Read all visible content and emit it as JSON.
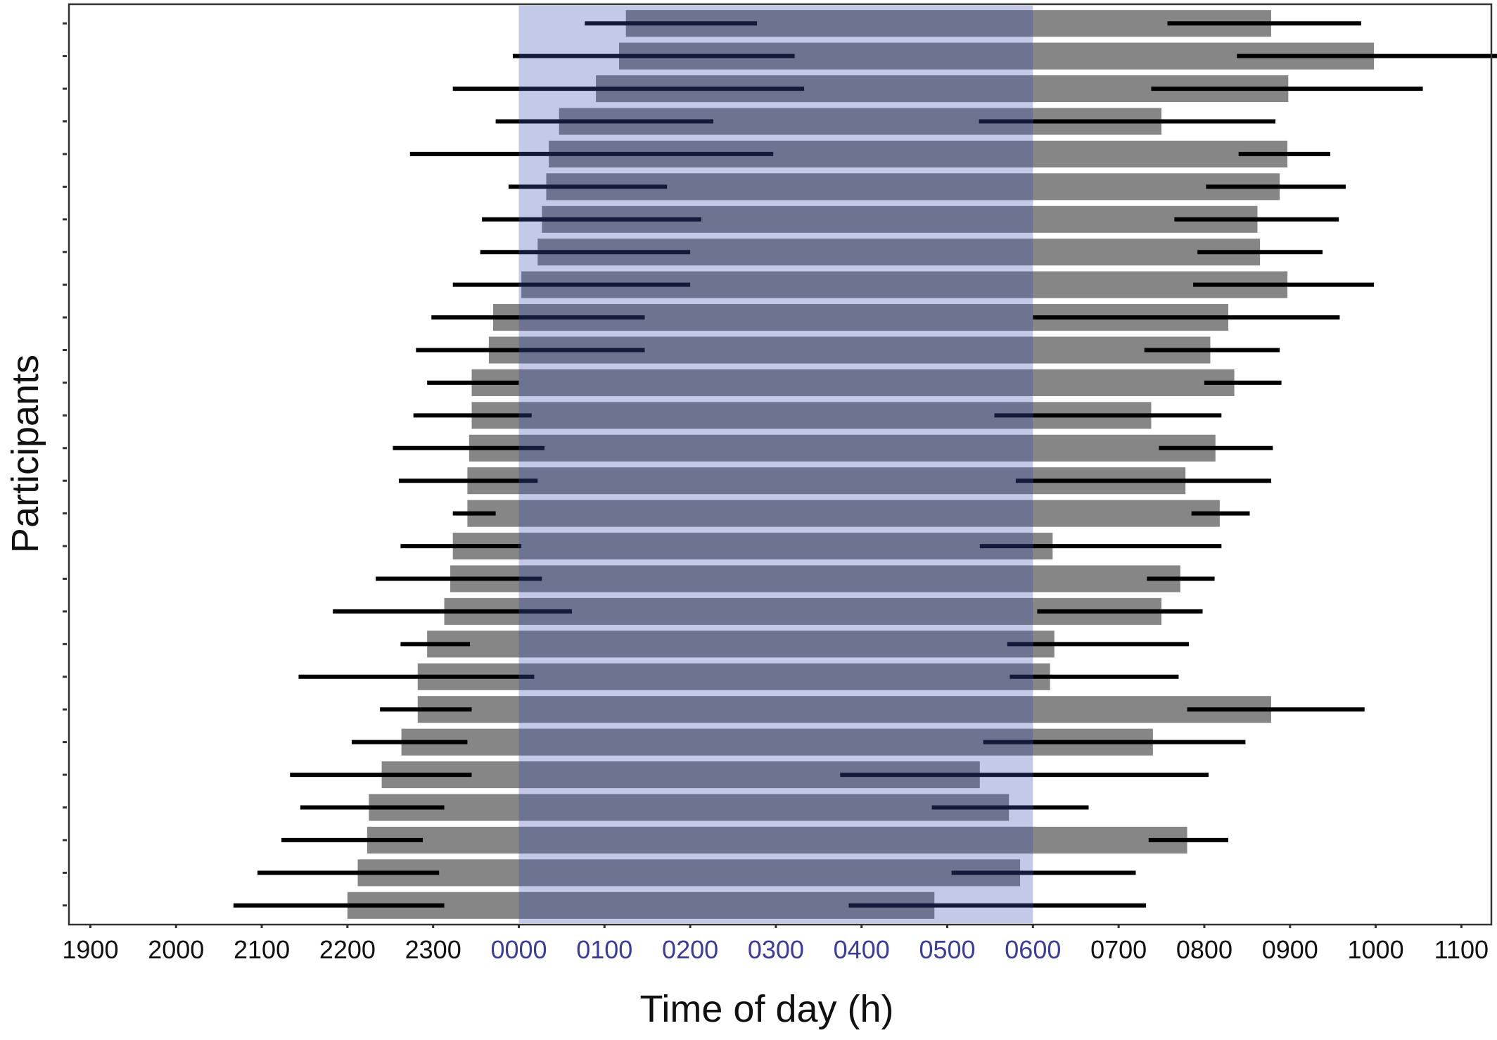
{
  "chart_data": {
    "type": "bar",
    "orientation": "horizontal",
    "xlabel": "Time of day (h)",
    "ylabel": "Participants",
    "x_ticks": [
      "1900",
      "2000",
      "2100",
      "2200",
      "2300",
      "0000",
      "0100",
      "0200",
      "0300",
      "0400",
      "0500",
      "0600",
      "0700",
      "0800",
      "0900",
      "1000",
      "1100"
    ],
    "x_tick_values": [
      19,
      20,
      21,
      22,
      23,
      24,
      25,
      26,
      27,
      28,
      29,
      30,
      31,
      32,
      33,
      34,
      35
    ],
    "xlim": [
      18.75,
      35.35
    ],
    "x_unit_note_hidden": true,
    "highlight_window": {
      "start": "0000",
      "end": "0600",
      "start_value": 24,
      "end_value": 30
    },
    "grid": false,
    "legend": "none",
    "colors": {
      "bar": "#868686",
      "bar_in_window": "#6e7490",
      "window": "#c5c9e8",
      "whisker": "#000000",
      "whisker_in_window": "#151a3a",
      "highlight_tick_text": "#3a3d9a",
      "tick_text": "#111111"
    },
    "series": [
      {
        "name": "",
        "rows": [
          {
            "bar": [
              25.25,
              32.78
            ],
            "onset": [
              24.77,
              26.78
            ],
            "offset": [
              31.57,
              33.83
            ]
          },
          {
            "bar": [
              25.17,
              33.98
            ],
            "onset": [
              23.93,
              27.22
            ],
            "offset": [
              32.38,
              35.65
            ]
          },
          {
            "bar": [
              24.9,
              32.98
            ],
            "onset": [
              23.23,
              27.33
            ],
            "offset": [
              31.38,
              34.55
            ]
          },
          {
            "bar": [
              24.47,
              31.5
            ],
            "onset": [
              23.73,
              26.27
            ],
            "offset": [
              29.37,
              32.83
            ]
          },
          {
            "bar": [
              24.35,
              32.97
            ],
            "onset": [
              22.73,
              26.97
            ],
            "offset": [
              32.4,
              33.47
            ]
          },
          {
            "bar": [
              24.32,
              32.88
            ],
            "onset": [
              23.88,
              25.73
            ],
            "offset": [
              32.02,
              33.65
            ]
          },
          {
            "bar": [
              24.27,
              32.62
            ],
            "onset": [
              23.57,
              26.13
            ],
            "offset": [
              31.65,
              33.57
            ]
          },
          {
            "bar": [
              24.22,
              32.65
            ],
            "onset": [
              23.55,
              26.0
            ],
            "offset": [
              31.92,
              33.38
            ]
          },
          {
            "bar": [
              24.03,
              32.97
            ],
            "onset": [
              23.23,
              26.0
            ],
            "offset": [
              31.87,
              33.98
            ]
          },
          {
            "bar": [
              23.7,
              32.28
            ],
            "onset": [
              22.98,
              25.47
            ],
            "offset": [
              30.0,
              33.58
            ]
          },
          {
            "bar": [
              23.65,
              32.07
            ],
            "onset": [
              22.8,
              25.47
            ],
            "offset": [
              31.3,
              32.88
            ]
          },
          {
            "bar": [
              23.45,
              32.35
            ],
            "onset": [
              22.93,
              24.0
            ],
            "offset": [
              32.0,
              32.9
            ]
          },
          {
            "bar": [
              23.45,
              31.38
            ],
            "onset": [
              22.77,
              24.15
            ],
            "offset": [
              29.55,
              32.2
            ]
          },
          {
            "bar": [
              23.42,
              32.13
            ],
            "onset": [
              22.53,
              24.3
            ],
            "offset": [
              31.47,
              32.8
            ]
          },
          {
            "bar": [
              23.4,
              31.78
            ],
            "onset": [
              22.6,
              24.22
            ],
            "offset": [
              29.8,
              32.78
            ]
          },
          {
            "bar": [
              23.4,
              32.18
            ],
            "onset": [
              23.23,
              23.73
            ],
            "offset": [
              31.85,
              32.53
            ]
          },
          {
            "bar": [
              23.23,
              30.23
            ],
            "onset": [
              22.62,
              24.03
            ],
            "offset": [
              29.38,
              32.2
            ]
          },
          {
            "bar": [
              23.2,
              31.72
            ],
            "onset": [
              22.33,
              24.27
            ],
            "offset": [
              31.33,
              32.12
            ]
          },
          {
            "bar": [
              23.13,
              31.5
            ],
            "onset": [
              21.83,
              24.62
            ],
            "offset": [
              30.05,
              31.98
            ]
          },
          {
            "bar": [
              22.93,
              30.25
            ],
            "onset": [
              22.62,
              23.43
            ],
            "offset": [
              29.7,
              31.82
            ]
          },
          {
            "bar": [
              22.82,
              30.2
            ],
            "onset": [
              21.43,
              24.18
            ],
            "offset": [
              29.73,
              31.7
            ]
          },
          {
            "bar": [
              22.82,
              32.78
            ],
            "onset": [
              22.38,
              23.45
            ],
            "offset": [
              31.8,
              33.87
            ]
          },
          {
            "bar": [
              22.63,
              31.4
            ],
            "onset": [
              22.05,
              23.4
            ],
            "offset": [
              29.42,
              32.48
            ]
          },
          {
            "bar": [
              22.4,
              29.38
            ],
            "onset": [
              21.33,
              23.45
            ],
            "offset": [
              27.75,
              32.05
            ]
          },
          {
            "bar": [
              22.25,
              29.72
            ],
            "onset": [
              21.45,
              23.13
            ],
            "offset": [
              28.82,
              30.65
            ]
          },
          {
            "bar": [
              22.23,
              31.8
            ],
            "onset": [
              21.23,
              22.88
            ],
            "offset": [
              31.35,
              32.28
            ]
          },
          {
            "bar": [
              22.12,
              29.85
            ],
            "onset": [
              20.95,
              23.07
            ],
            "offset": [
              29.05,
              31.2
            ]
          },
          {
            "bar": [
              22.0,
              28.85
            ],
            "onset": [
              20.67,
              23.13
            ],
            "offset": [
              27.85,
              31.32
            ]
          }
        ]
      }
    ]
  }
}
